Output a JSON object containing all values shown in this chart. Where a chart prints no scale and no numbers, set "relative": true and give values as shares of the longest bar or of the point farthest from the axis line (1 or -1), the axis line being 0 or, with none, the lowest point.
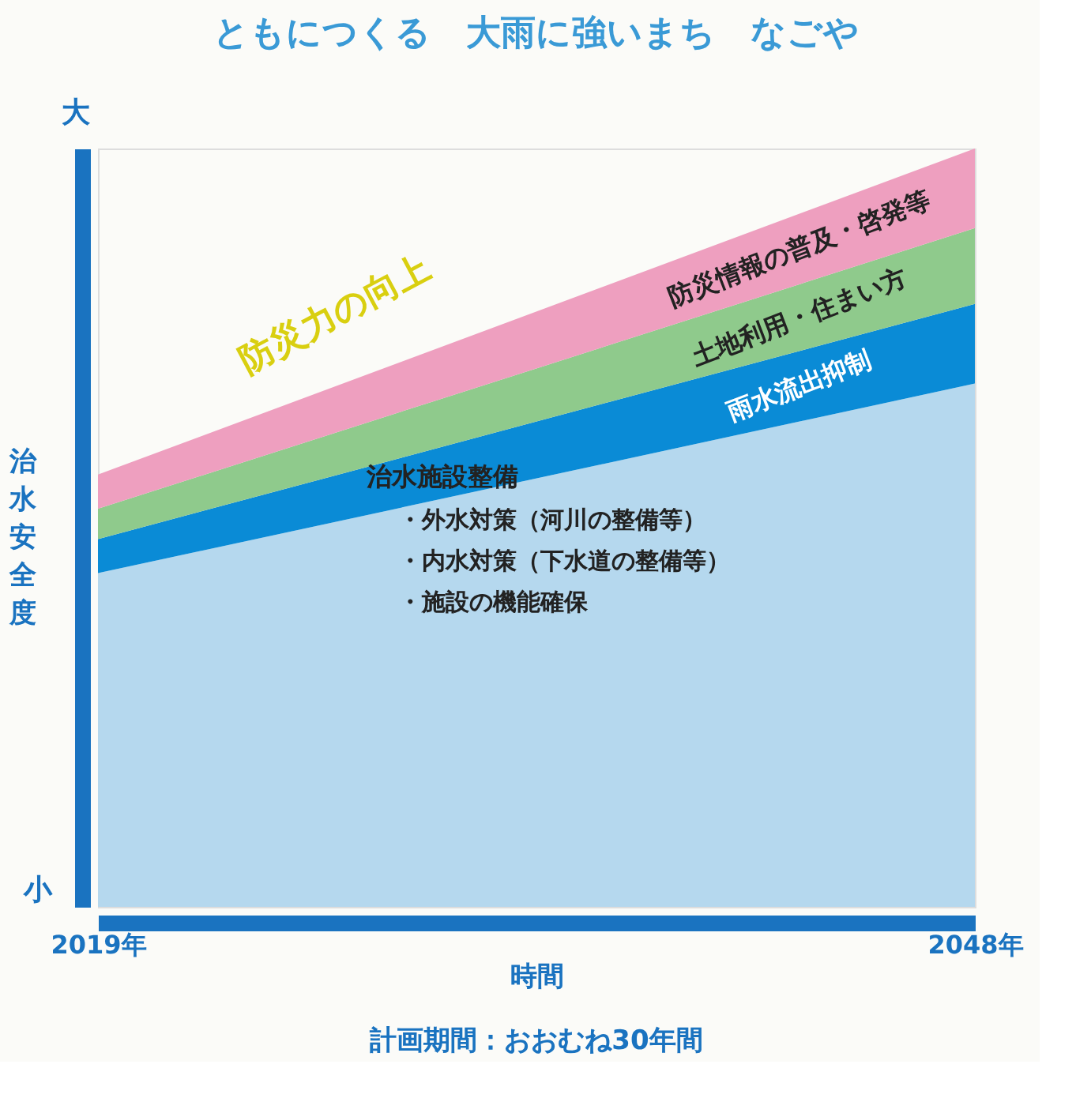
{
  "chart_data": {
    "type": "area",
    "title": "ともにつくる　大雨に強いまち　なごや",
    "xlabel": "時間",
    "ylabel": "治水安全度",
    "x": [
      2019,
      2048
    ],
    "xlim": [
      2019,
      2048
    ],
    "xticks": [
      {
        "value": 2019,
        "label": "2019年"
      },
      {
        "value": 2048,
        "label": "2048年"
      }
    ],
    "relative": true,
    "stacked": true,
    "legend": false,
    "series": [
      {
        "name": "治水施設整備",
        "color": "#b5d8ee",
        "values": [
          0.44,
          0.69
        ]
      },
      {
        "name": "雨水流出抑制",
        "color": "#0a8bd6",
        "values": [
          0.045,
          0.105
        ]
      },
      {
        "name": "土地利用・住まい方",
        "color": "#8fca8c",
        "values": [
          0.04,
          0.1
        ]
      },
      {
        "name": "防災情報の普及・啓発等",
        "color": "#ee9fbf",
        "values": [
          0.045,
          0.105
        ]
      }
    ],
    "annotations": [
      "大",
      "小",
      "防災力の向上",
      "・外水対策（河川の整備等）",
      "・内水対策（下水道の整備等）",
      "・施設の機能確保",
      "計画期間：おおむね30年間"
    ]
  }
}
